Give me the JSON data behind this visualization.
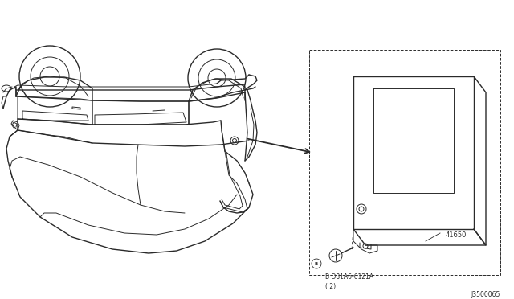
{
  "bg_color": "#ffffff",
  "line_color": "#2a2a2a",
  "part_label_1": "B D81A6-6121A\n( 2)",
  "part_label_2": "41650",
  "diagram_code": "J3500065",
  "figsize": [
    6.4,
    3.72
  ],
  "dpi": 100
}
